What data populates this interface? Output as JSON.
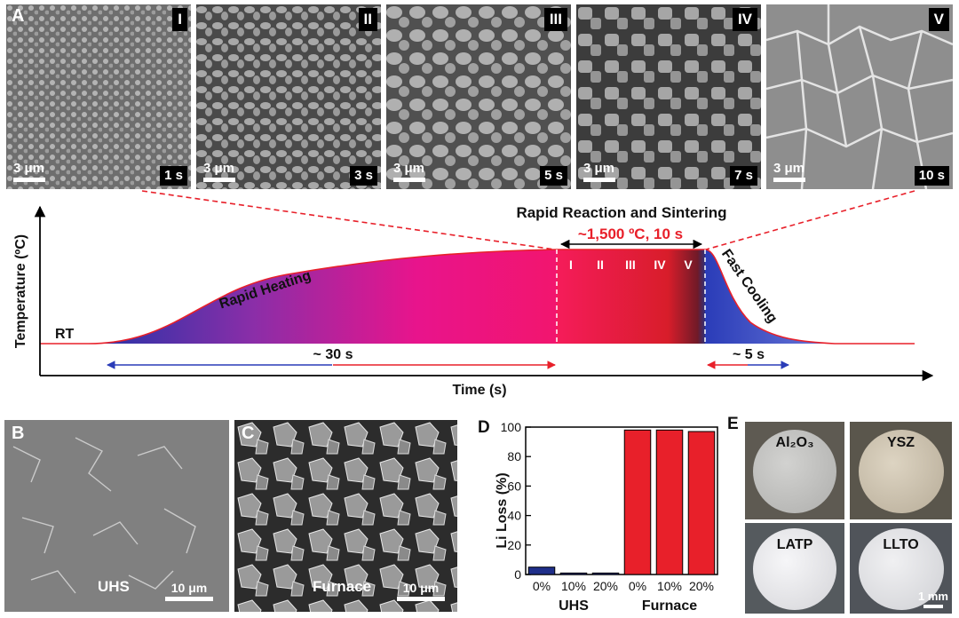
{
  "panelA": {
    "letter": "A",
    "images": [
      {
        "roman": "I",
        "time": "1 s",
        "scale": "3 μm"
      },
      {
        "roman": "II",
        "time": "3 s",
        "scale": "3 μm"
      },
      {
        "roman": "III",
        "time": "5 s",
        "scale": "3 μm"
      },
      {
        "roman": "IV",
        "time": "7 s",
        "scale": "3 μm"
      },
      {
        "roman": "V",
        "time": "10 s",
        "scale": "3 μm"
      }
    ]
  },
  "profile": {
    "ylabel": "Temperature (ºC)",
    "xlabel": "Time (s)",
    "rt_label": "RT",
    "heating_label": "Rapid Heating",
    "cooling_label": "Fast Cooling",
    "reaction_title": "Rapid Reaction and Sintering",
    "reaction_condition": "~1,500 ºC, 10 s",
    "stages": [
      "I",
      "II",
      "III",
      "IV",
      "V"
    ],
    "heating_duration": "~ 30 s",
    "cooling_duration": "~ 5 s"
  },
  "panelB": {
    "letter": "B",
    "label": "UHS",
    "scale": "10 μm"
  },
  "panelC": {
    "letter": "C",
    "label": "Furnace",
    "scale": "10 μm"
  },
  "chart_data": {
    "type": "bar",
    "letter": "D",
    "ylabel": "Li Loss (%)",
    "ylim": [
      0,
      100
    ],
    "yticks": [
      0,
      20,
      40,
      60,
      80,
      100
    ],
    "groups": [
      {
        "name": "UHS",
        "color": "#1f2f8a",
        "categories": [
          "0%",
          "10%",
          "20%"
        ],
        "values": [
          5,
          1,
          1
        ]
      },
      {
        "name": "Furnace",
        "color": "#e8202a",
        "categories": [
          "0%",
          "10%",
          "20%"
        ],
        "values": [
          98,
          98,
          97
        ]
      }
    ]
  },
  "panelE": {
    "letter": "E",
    "samples": [
      "Al₂O₃",
      "YSZ",
      "LATP",
      "LLTO"
    ],
    "scale": "1 mm"
  }
}
